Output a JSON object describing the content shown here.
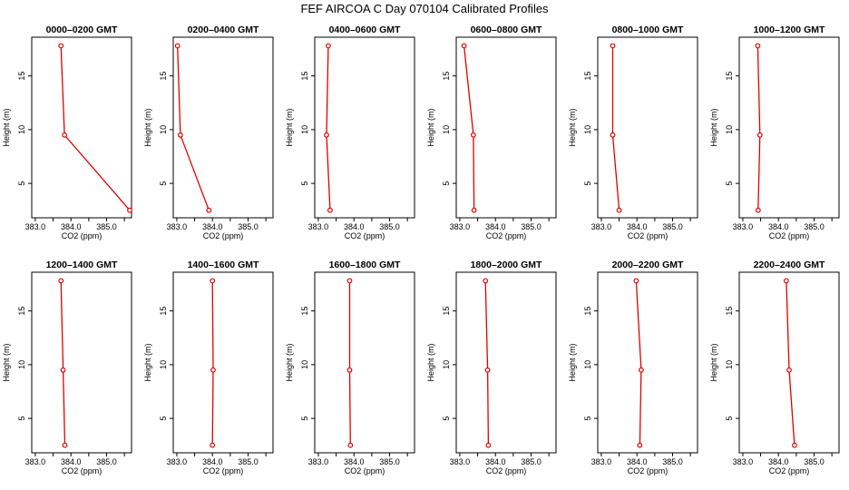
{
  "figure": {
    "title": "FEF AIRCOA C  Day 070104  Calibrated Profiles"
  },
  "colors": {
    "series": "#e00000",
    "axis": "#000000"
  },
  "chart_data": [
    {
      "type": "line",
      "title": "0000–0200 GMT",
      "xlabel": "CO2 (ppm)",
      "ylabel": "Height (m)",
      "xlim": [
        382.9,
        385.7
      ],
      "ylim": [
        1.8,
        18.6
      ],
      "xticks": [
        "383.0",
        "384.0",
        "385.0"
      ],
      "yticks": [
        "5",
        "10",
        "15"
      ],
      "points": [
        {
          "x": 383.72,
          "y": 17.8
        },
        {
          "x": 383.82,
          "y": 9.5
        },
        {
          "x": 385.65,
          "y": 2.5
        }
      ]
    },
    {
      "type": "line",
      "title": "0200–0400 GMT",
      "xlabel": "CO2 (ppm)",
      "ylabel": "Height (m)",
      "xlim": [
        382.9,
        385.7
      ],
      "ylim": [
        1.8,
        18.6
      ],
      "xticks": [
        "383.0",
        "384.0",
        "385.0"
      ],
      "yticks": [
        "5",
        "10",
        "15"
      ],
      "points": [
        {
          "x": 383.02,
          "y": 17.8
        },
        {
          "x": 383.1,
          "y": 9.5
        },
        {
          "x": 383.9,
          "y": 2.5
        }
      ]
    },
    {
      "type": "line",
      "title": "0400–0600 GMT",
      "xlabel": "CO2 (ppm)",
      "ylabel": "Height (m)",
      "xlim": [
        382.9,
        385.7
      ],
      "ylim": [
        1.8,
        18.6
      ],
      "xticks": [
        "383.0",
        "384.0",
        "385.0"
      ],
      "yticks": [
        "5",
        "10",
        "15"
      ],
      "points": [
        {
          "x": 383.28,
          "y": 17.8
        },
        {
          "x": 383.23,
          "y": 9.5
        },
        {
          "x": 383.33,
          "y": 2.5
        }
      ]
    },
    {
      "type": "line",
      "title": "0600–0800 GMT",
      "xlabel": "CO2 (ppm)",
      "ylabel": "Height (m)",
      "xlim": [
        382.9,
        385.7
      ],
      "ylim": [
        1.8,
        18.6
      ],
      "xticks": [
        "383.0",
        "384.0",
        "385.0"
      ],
      "yticks": [
        "5",
        "10",
        "15"
      ],
      "points": [
        {
          "x": 383.12,
          "y": 17.8
        },
        {
          "x": 383.38,
          "y": 9.5
        },
        {
          "x": 383.4,
          "y": 2.5
        }
      ]
    },
    {
      "type": "line",
      "title": "0800–1000 GMT",
      "xlabel": "CO2 (ppm)",
      "ylabel": "Height (m)",
      "xlim": [
        382.9,
        385.7
      ],
      "ylim": [
        1.8,
        18.6
      ],
      "xticks": [
        "383.0",
        "384.0",
        "385.0"
      ],
      "yticks": [
        "5",
        "10",
        "15"
      ],
      "points": [
        {
          "x": 383.32,
          "y": 17.8
        },
        {
          "x": 383.32,
          "y": 9.5
        },
        {
          "x": 383.5,
          "y": 2.5
        }
      ]
    },
    {
      "type": "line",
      "title": "1000–1200 GMT",
      "xlabel": "CO2 (ppm)",
      "ylabel": "Height (m)",
      "xlim": [
        382.9,
        385.7
      ],
      "ylim": [
        1.8,
        18.6
      ],
      "xticks": [
        "383.0",
        "384.0",
        "385.0"
      ],
      "yticks": [
        "5",
        "10",
        "15"
      ],
      "points": [
        {
          "x": 383.42,
          "y": 17.8
        },
        {
          "x": 383.48,
          "y": 9.5
        },
        {
          "x": 383.43,
          "y": 2.5
        }
      ]
    },
    {
      "type": "line",
      "title": "1200–1400 GMT",
      "xlabel": "CO2 (ppm)",
      "ylabel": "Height (m)",
      "xlim": [
        382.9,
        385.7
      ],
      "ylim": [
        1.8,
        18.6
      ],
      "xticks": [
        "383.0",
        "384.0",
        "385.0"
      ],
      "yticks": [
        "5",
        "10",
        "15"
      ],
      "points": [
        {
          "x": 383.72,
          "y": 17.8
        },
        {
          "x": 383.78,
          "y": 9.5
        },
        {
          "x": 383.83,
          "y": 2.5
        }
      ]
    },
    {
      "type": "line",
      "title": "1400–1600 GMT",
      "xlabel": "CO2 (ppm)",
      "ylabel": "Height (m)",
      "xlim": [
        382.9,
        385.7
      ],
      "ylim": [
        1.8,
        18.6
      ],
      "xticks": [
        "383.0",
        "384.0",
        "385.0"
      ],
      "yticks": [
        "5",
        "10",
        "15"
      ],
      "points": [
        {
          "x": 384.0,
          "y": 17.8
        },
        {
          "x": 384.02,
          "y": 9.5
        },
        {
          "x": 384.0,
          "y": 2.5
        }
      ]
    },
    {
      "type": "line",
      "title": "1600–1800 GMT",
      "xlabel": "CO2 (ppm)",
      "ylabel": "Height (m)",
      "xlim": [
        382.9,
        385.7
      ],
      "ylim": [
        1.8,
        18.6
      ],
      "xticks": [
        "383.0",
        "384.0",
        "385.0"
      ],
      "yticks": [
        "5",
        "10",
        "15"
      ],
      "points": [
        {
          "x": 383.88,
          "y": 17.8
        },
        {
          "x": 383.88,
          "y": 9.5
        },
        {
          "x": 383.9,
          "y": 2.5
        }
      ]
    },
    {
      "type": "line",
      "title": "1800–2000 GMT",
      "xlabel": "CO2 (ppm)",
      "ylabel": "Height (m)",
      "xlim": [
        382.9,
        385.7
      ],
      "ylim": [
        1.8,
        18.6
      ],
      "xticks": [
        "383.0",
        "384.0",
        "385.0"
      ],
      "yticks": [
        "5",
        "10",
        "15"
      ],
      "points": [
        {
          "x": 383.72,
          "y": 17.8
        },
        {
          "x": 383.78,
          "y": 9.5
        },
        {
          "x": 383.8,
          "y": 2.5
        }
      ]
    },
    {
      "type": "line",
      "title": "2000–2200 GMT",
      "xlabel": "CO2 (ppm)",
      "ylabel": "Height (m)",
      "xlim": [
        382.9,
        385.7
      ],
      "ylim": [
        1.8,
        18.6
      ],
      "xticks": [
        "383.0",
        "384.0",
        "385.0"
      ],
      "yticks": [
        "5",
        "10",
        "15"
      ],
      "points": [
        {
          "x": 383.98,
          "y": 17.8
        },
        {
          "x": 384.12,
          "y": 9.5
        },
        {
          "x": 384.08,
          "y": 2.5
        }
      ]
    },
    {
      "type": "line",
      "title": "2200–2400 GMT",
      "xlabel": "CO2 (ppm)",
      "ylabel": "Height (m)",
      "xlim": [
        382.9,
        385.7
      ],
      "ylim": [
        1.8,
        18.6
      ],
      "xticks": [
        "383.0",
        "384.0",
        "385.0"
      ],
      "yticks": [
        "5",
        "10",
        "15"
      ],
      "points": [
        {
          "x": 384.22,
          "y": 17.8
        },
        {
          "x": 384.3,
          "y": 9.5
        },
        {
          "x": 384.45,
          "y": 2.5
        }
      ]
    }
  ]
}
